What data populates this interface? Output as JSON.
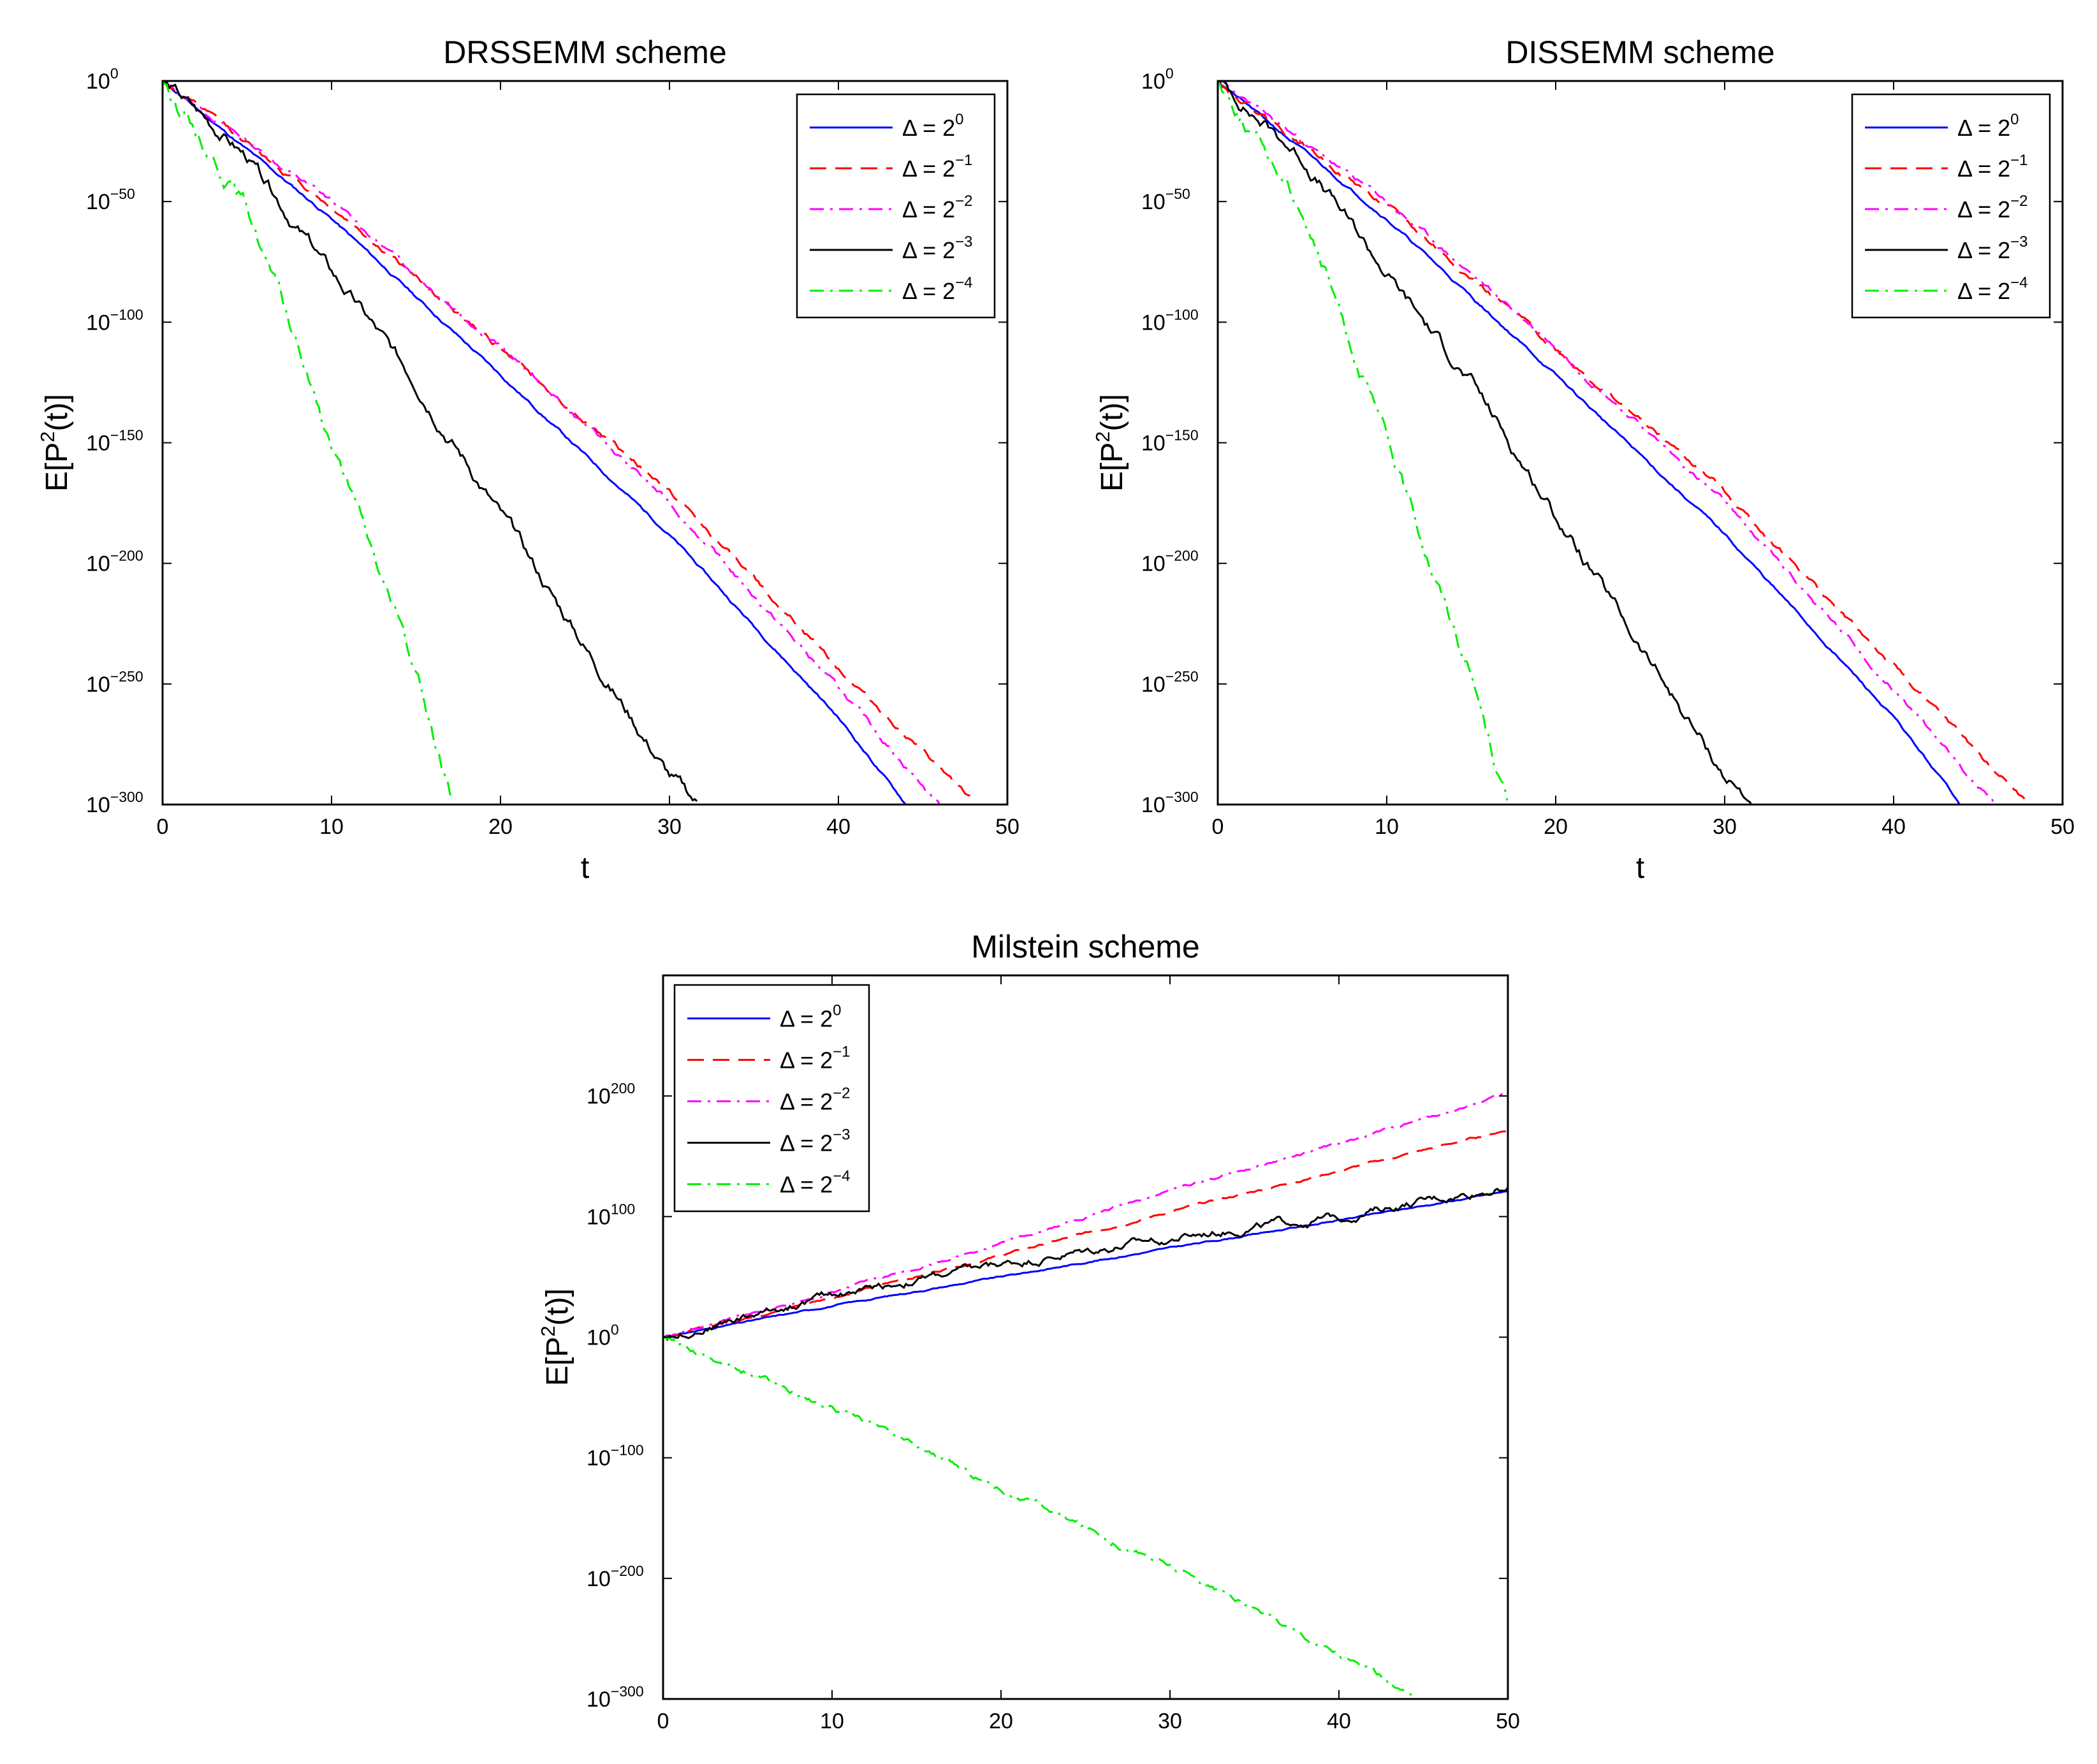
{
  "chart_data": [
    {
      "type": "line",
      "title": "DRSSEMM scheme",
      "xlabel": "t",
      "ylabel": "E[P²(t)]",
      "ylabel_base": "E[P",
      "ylabel_sup": "2",
      "ylabel_tail": "(t)]",
      "yscale": "log",
      "xlim": [
        0,
        50
      ],
      "ylim_log10": [
        -300,
        0
      ],
      "xticks": [
        0,
        10,
        20,
        30,
        40,
        50
      ],
      "xtick_labels": [
        "0",
        "10",
        "20",
        "30",
        "40",
        "50"
      ],
      "yticks_log10": [
        0,
        -50,
        -100,
        -150,
        -200,
        -250,
        -300
      ],
      "ytick_base": "10",
      "ytick_exponents": [
        "0",
        "−50",
        "−100",
        "−150",
        "−200",
        "−250",
        "−300"
      ],
      "legend_position": "top-right",
      "series": [
        {
          "name": "Δ = 2^0",
          "label_base": "Δ = 2",
          "label_exp": "0",
          "color": "#0000ff",
          "dash": "solid",
          "t": [
            0,
            10,
            20,
            30,
            40,
            44
          ],
          "log10_y": [
            0,
            -57,
            -122,
            -188,
            -264,
            -300
          ],
          "noise": 0.4,
          "seed": 11
        },
        {
          "name": "Δ = 2^-1",
          "label_base": "Δ = 2",
          "label_exp": "−1",
          "color": "#ff0000",
          "dash": "dashed",
          "t": [
            0,
            10,
            20,
            30,
            40,
            48
          ],
          "log10_y": [
            0,
            -52,
            -111,
            -170,
            -243,
            -300
          ],
          "noise": 0.8,
          "seed": 12
        },
        {
          "name": "Δ = 2^-2",
          "label_base": "Δ = 2",
          "label_exp": "−2",
          "color": "#ff00ff",
          "dash": "dashdot",
          "t": [
            0,
            10,
            20,
            30,
            40,
            46
          ],
          "log10_y": [
            0,
            -50,
            -110,
            -175,
            -252,
            -300
          ],
          "noise": 0.8,
          "seed": 13
        },
        {
          "name": "Δ = 2^-3",
          "label_base": "Δ = 2",
          "label_exp": "−3",
          "color": "#000000",
          "dash": "solid",
          "t": [
            0,
            5,
            10,
            15,
            20,
            25,
            30,
            31.7
          ],
          "log10_y": [
            0,
            -32,
            -80,
            -125,
            -180,
            -235,
            -288,
            -300
          ],
          "noise": 1.8,
          "seed": 14
        },
        {
          "name": "Δ = 2^-4",
          "label_base": "Δ = 2",
          "label_exp": "−4",
          "color": "#00ee00",
          "dash": "dashdot",
          "t": [
            0,
            5,
            10,
            15,
            17.2
          ],
          "log10_y": [
            0,
            -52,
            -150,
            -245,
            -300
          ],
          "noise": 2.2,
          "seed": 15
        }
      ]
    },
    {
      "type": "line",
      "title": "DISSEMM scheme",
      "xlabel": "t",
      "ylabel": "E[P²(t)]",
      "ylabel_base": "E[P",
      "ylabel_sup": "2",
      "ylabel_tail": "(t)]",
      "yscale": "log",
      "xlim": [
        0,
        50
      ],
      "ylim_log10": [
        -300,
        0
      ],
      "xticks": [
        0,
        10,
        20,
        30,
        40,
        50
      ],
      "xtick_labels": [
        "0",
        "10",
        "20",
        "30",
        "40",
        "50"
      ],
      "yticks_log10": [
        0,
        -50,
        -100,
        -150,
        -200,
        -250,
        -300
      ],
      "ytick_base": "10",
      "ytick_exponents": [
        "0",
        "−50",
        "−100",
        "−150",
        "−200",
        "−250",
        "−300"
      ],
      "legend_position": "top-right",
      "series": [
        {
          "name": "Δ = 2^0",
          "label_base": "Δ = 2",
          "label_exp": "0",
          "color": "#0000ff",
          "dash": "solid",
          "t": [
            0,
            10,
            20,
            30,
            40,
            44
          ],
          "log10_y": [
            0,
            -57,
            -122,
            -188,
            -264,
            -300
          ],
          "noise": 0.4,
          "seed": 21
        },
        {
          "name": "Δ = 2^-1",
          "label_base": "Δ = 2",
          "label_exp": "−1",
          "color": "#ff0000",
          "dash": "dashed",
          "t": [
            0,
            10,
            20,
            30,
            40,
            48
          ],
          "log10_y": [
            0,
            -52,
            -111,
            -170,
            -243,
            -300
          ],
          "noise": 0.8,
          "seed": 22
        },
        {
          "name": "Δ = 2^-2",
          "label_base": "Δ = 2",
          "label_exp": "−2",
          "color": "#ff00ff",
          "dash": "dashdot",
          "t": [
            0,
            10,
            20,
            30,
            40,
            46
          ],
          "log10_y": [
            0,
            -50,
            -110,
            -175,
            -252,
            -300
          ],
          "noise": 0.8,
          "seed": 23
        },
        {
          "name": "Δ = 2^-3",
          "label_base": "Δ = 2",
          "label_exp": "−3",
          "color": "#000000",
          "dash": "solid",
          "t": [
            0,
            5,
            10,
            15,
            20,
            25,
            30,
            31.7
          ],
          "log10_y": [
            0,
            -32,
            -80,
            -125,
            -180,
            -235,
            -288,
            -300
          ],
          "noise": 1.8,
          "seed": 24
        },
        {
          "name": "Δ = 2^-4",
          "label_base": "Δ = 2",
          "label_exp": "−4",
          "color": "#00ee00",
          "dash": "dashdot",
          "t": [
            0,
            5,
            10,
            15,
            17.2
          ],
          "log10_y": [
            0,
            -52,
            -150,
            -245,
            -300
          ],
          "noise": 2.2,
          "seed": 25
        }
      ]
    },
    {
      "type": "line",
      "title": "Milstein scheme",
      "xlabel": "",
      "ylabel": "E[P²(t)]",
      "ylabel_base": "E[P",
      "ylabel_sup": "2",
      "ylabel_tail": "(t)]",
      "yscale": "log",
      "xlim": [
        0,
        50
      ],
      "ylim_log10": [
        -300,
        300
      ],
      "xticks": [
        0,
        10,
        20,
        30,
        40,
        50
      ],
      "xtick_labels": [
        "0",
        "10",
        "20",
        "30",
        "40",
        "50"
      ],
      "yticks_log10": [
        200,
        100,
        0,
        -100,
        -200,
        -300
      ],
      "ytick_base": "10",
      "ytick_exponents": [
        "200",
        "100",
        "0",
        "−100",
        "−200",
        "−300"
      ],
      "legend_position": "top-left",
      "series": [
        {
          "name": "Δ = 2^0",
          "label_base": "Δ = 2",
          "label_exp": "0",
          "color": "#0000ff",
          "dash": "solid",
          "t": [
            0,
            10,
            20,
            30,
            40,
            50
          ],
          "log10_y": [
            0,
            26,
            50,
            74,
            97,
            121
          ],
          "noise": 0.4,
          "seed": 31
        },
        {
          "name": "Δ = 2^-1",
          "label_base": "Δ = 2",
          "label_exp": "−1",
          "color": "#ff0000",
          "dash": "dashed",
          "t": [
            0,
            10,
            20,
            30,
            40,
            50
          ],
          "log10_y": [
            0,
            33,
            68,
            104,
            138,
            172
          ],
          "noise": 0.6,
          "seed": 32
        },
        {
          "name": "Δ = 2^-2",
          "label_base": "Δ = 2",
          "label_exp": "−2",
          "color": "#ff00ff",
          "dash": "dashdot",
          "t": [
            0,
            10,
            20,
            30,
            40,
            50
          ],
          "log10_y": [
            0,
            37,
            78,
            122,
            160,
            202
          ],
          "noise": 0.8,
          "seed": 33
        },
        {
          "name": "Δ = 2^-3",
          "label_base": "Δ = 2",
          "label_exp": "−3",
          "color": "#000000",
          "dash": "solid",
          "t": [
            0,
            10,
            20,
            30,
            40,
            50
          ],
          "log10_y": [
            0,
            35,
            60,
            82,
            100,
            125
          ],
          "noise": 2.2,
          "seed": 34
        },
        {
          "name": "Δ = 2^-4",
          "label_base": "Δ = 2",
          "label_exp": "−4",
          "color": "#00ee00",
          "dash": "dashdot",
          "t": [
            0,
            10,
            20,
            30,
            40,
            44.5
          ],
          "log10_y": [
            0,
            -58,
            -125,
            -190,
            -262,
            -300
          ],
          "noise": 1.8,
          "seed": 35
        }
      ]
    }
  ]
}
